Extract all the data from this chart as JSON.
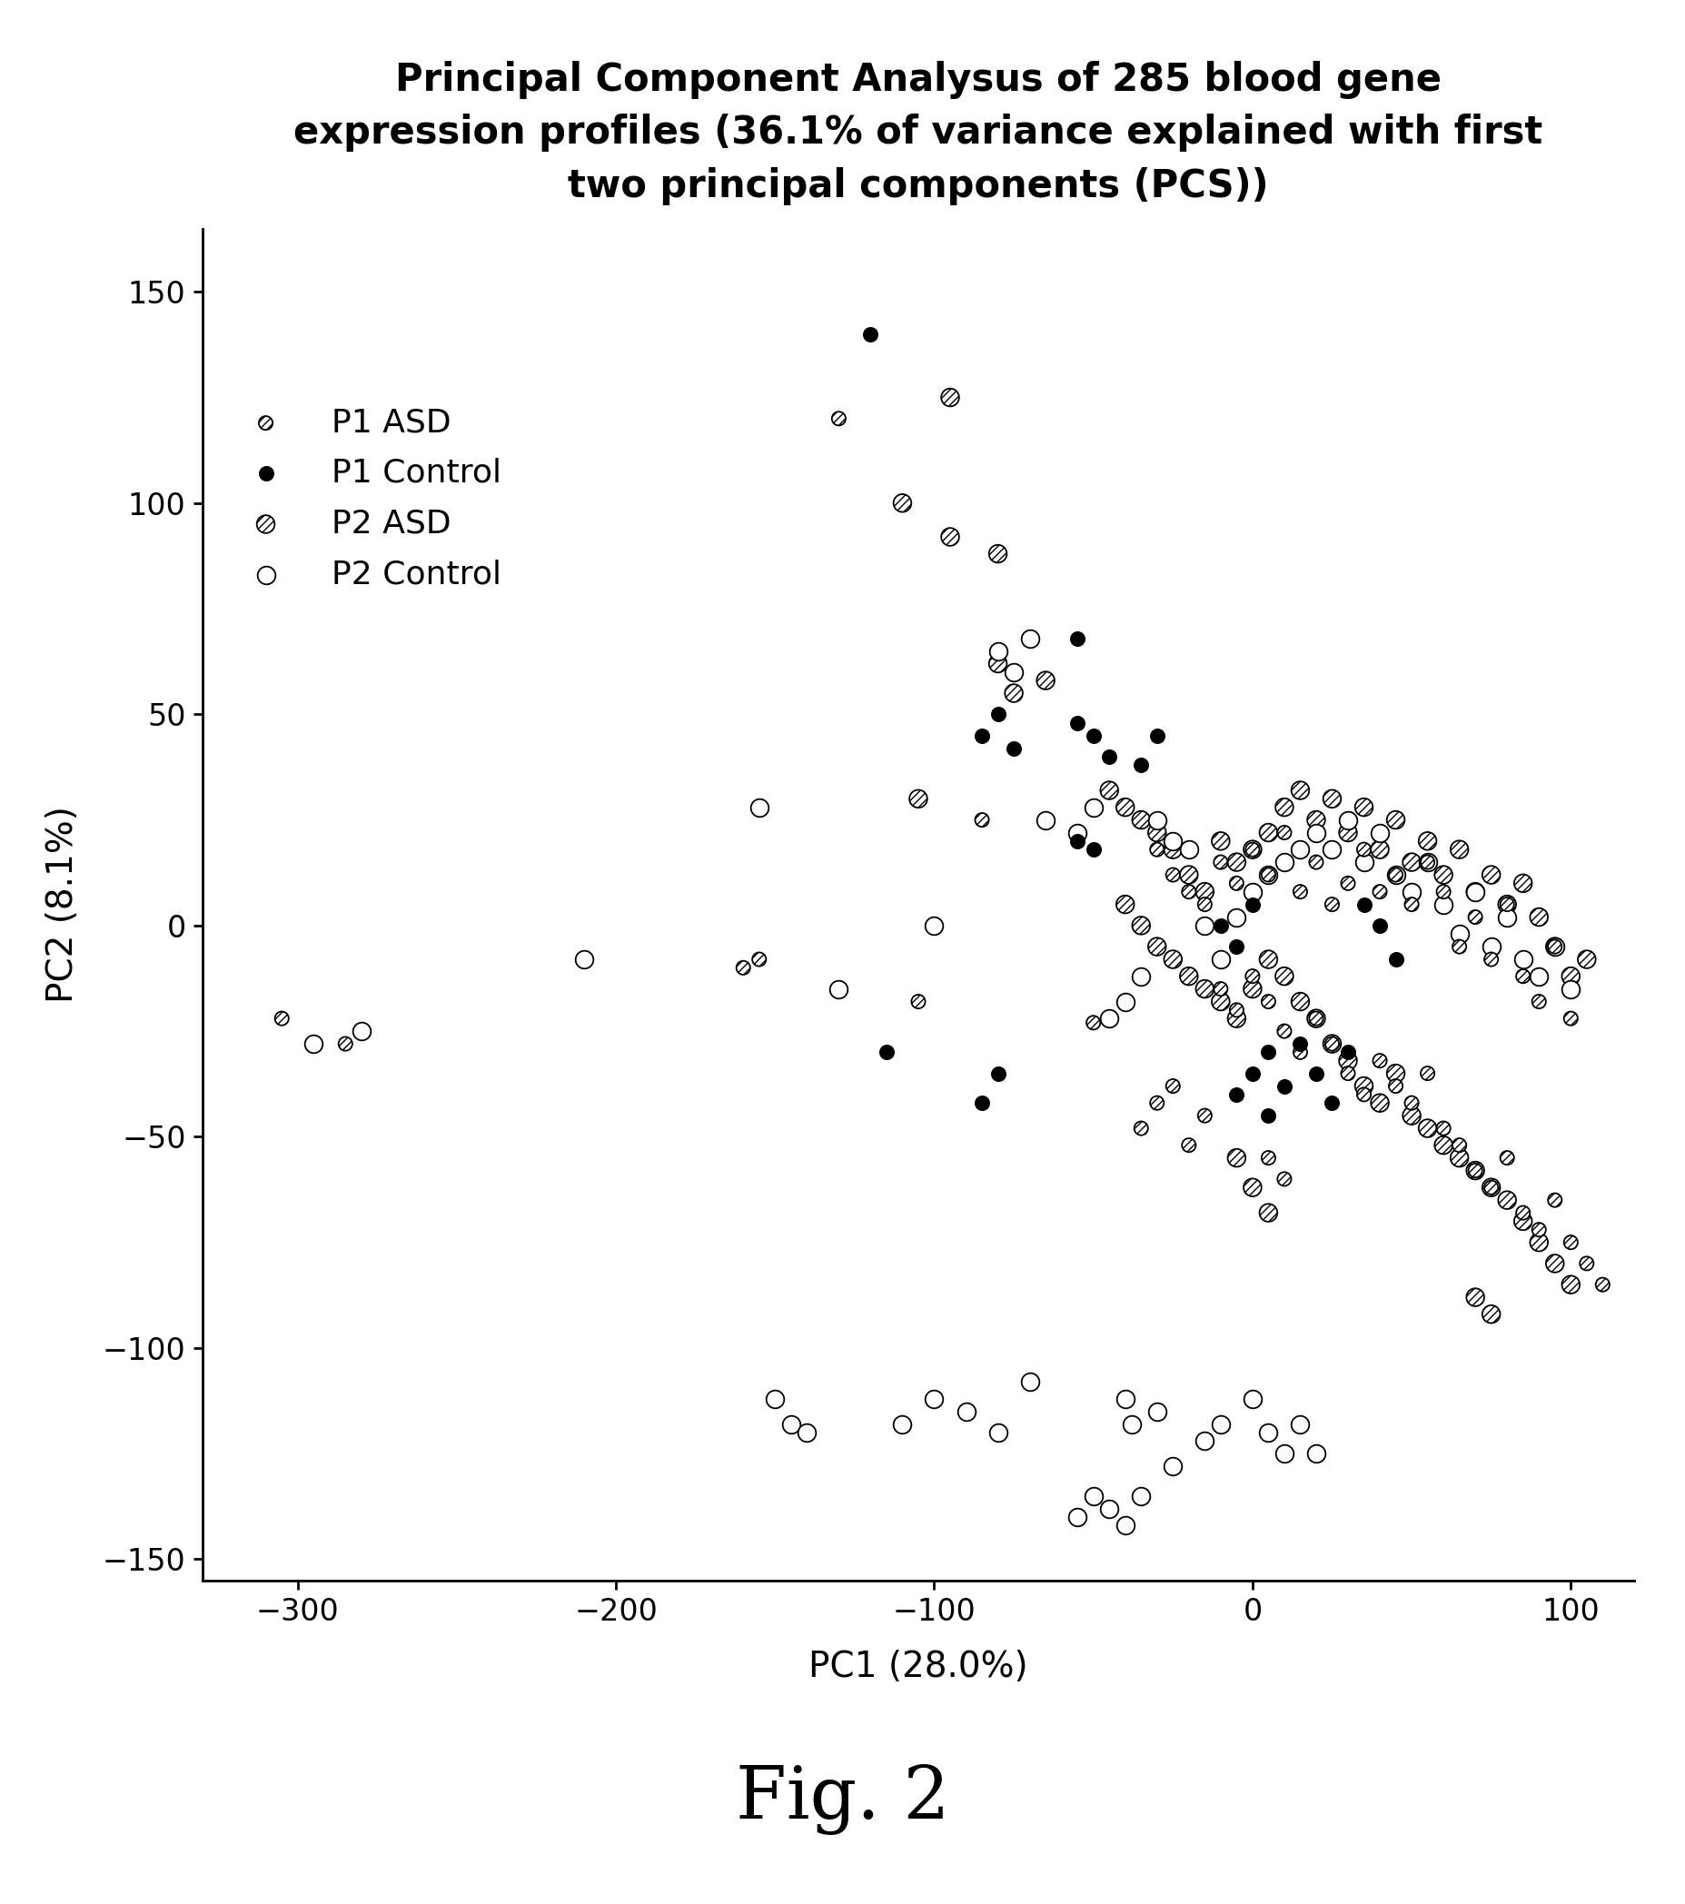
{
  "title": "Principal Component Analysus of 285 blood gene\nexpression profiles (36.1% of variance explained with first\ntwo principal components (PCS))",
  "xlabel": "PC1 (28.0%)",
  "ylabel": "PC2 (8.1%)",
  "fig_label": "Fig. 2",
  "xlim": [
    -330,
    120
  ],
  "ylim": [
    -155,
    165
  ],
  "xticks": [
    -300,
    -200,
    -100,
    0,
    100
  ],
  "yticks": [
    -150,
    -100,
    -50,
    0,
    50,
    100,
    150
  ],
  "background_color": "#ffffff",
  "p1_asd": [
    [
      -305,
      -22
    ],
    [
      -285,
      -28
    ],
    [
      -160,
      -10
    ],
    [
      -155,
      -8
    ],
    [
      -130,
      120
    ],
    [
      -105,
      -18
    ],
    [
      -85,
      25
    ],
    [
      -50,
      -23
    ],
    [
      -30,
      18
    ],
    [
      -25,
      12
    ],
    [
      -20,
      8
    ],
    [
      -15,
      5
    ],
    [
      -10,
      15
    ],
    [
      -5,
      10
    ],
    [
      0,
      18
    ],
    [
      5,
      12
    ],
    [
      10,
      22
    ],
    [
      15,
      8
    ],
    [
      20,
      15
    ],
    [
      25,
      5
    ],
    [
      30,
      10
    ],
    [
      35,
      18
    ],
    [
      40,
      8
    ],
    [
      45,
      12
    ],
    [
      50,
      5
    ],
    [
      55,
      15
    ],
    [
      60,
      8
    ],
    [
      65,
      -5
    ],
    [
      70,
      2
    ],
    [
      75,
      -8
    ],
    [
      80,
      5
    ],
    [
      85,
      -12
    ],
    [
      90,
      -18
    ],
    [
      95,
      -5
    ],
    [
      100,
      -22
    ],
    [
      -10,
      -15
    ],
    [
      -5,
      -20
    ],
    [
      0,
      -12
    ],
    [
      5,
      -18
    ],
    [
      10,
      -25
    ],
    [
      15,
      -30
    ],
    [
      20,
      -22
    ],
    [
      25,
      -28
    ],
    [
      30,
      -35
    ],
    [
      35,
      -40
    ],
    [
      40,
      -32
    ],
    [
      45,
      -38
    ],
    [
      50,
      -42
    ],
    [
      55,
      -35
    ],
    [
      60,
      -48
    ],
    [
      65,
      -52
    ],
    [
      70,
      -58
    ],
    [
      75,
      -62
    ],
    [
      80,
      -55
    ],
    [
      85,
      -68
    ],
    [
      90,
      -72
    ],
    [
      95,
      -65
    ],
    [
      100,
      -75
    ],
    [
      105,
      -80
    ],
    [
      110,
      -85
    ],
    [
      -15,
      -45
    ],
    [
      -20,
      -52
    ],
    [
      -25,
      -38
    ],
    [
      -30,
      -42
    ],
    [
      -35,
      -48
    ],
    [
      5,
      -55
    ],
    [
      10,
      -60
    ]
  ],
  "p1_control": [
    [
      -120,
      140
    ],
    [
      -55,
      68
    ],
    [
      -85,
      45
    ],
    [
      -80,
      50
    ],
    [
      -75,
      42
    ],
    [
      -55,
      48
    ],
    [
      -50,
      45
    ],
    [
      -115,
      -30
    ],
    [
      -85,
      -42
    ],
    [
      -80,
      -35
    ],
    [
      -55,
      20
    ],
    [
      -50,
      18
    ],
    [
      -45,
      40
    ],
    [
      -35,
      38
    ],
    [
      -30,
      45
    ],
    [
      -10,
      0
    ],
    [
      -5,
      -5
    ],
    [
      0,
      5
    ],
    [
      5,
      -30
    ],
    [
      10,
      -38
    ],
    [
      15,
      -28
    ],
    [
      20,
      -35
    ],
    [
      25,
      -42
    ],
    [
      30,
      -30
    ],
    [
      35,
      5
    ],
    [
      40,
      0
    ],
    [
      45,
      -8
    ],
    [
      0,
      -35
    ],
    [
      -5,
      -40
    ],
    [
      5,
      -45
    ]
  ],
  "p2_asd": [
    [
      -95,
      125
    ],
    [
      -110,
      100
    ],
    [
      -95,
      92
    ],
    [
      -80,
      88
    ],
    [
      -80,
      62
    ],
    [
      -75,
      55
    ],
    [
      -65,
      58
    ],
    [
      -105,
      30
    ],
    [
      -45,
      32
    ],
    [
      -40,
      28
    ],
    [
      -35,
      25
    ],
    [
      -30,
      22
    ],
    [
      -25,
      18
    ],
    [
      -20,
      12
    ],
    [
      -15,
      8
    ],
    [
      -10,
      20
    ],
    [
      -5,
      15
    ],
    [
      0,
      18
    ],
    [
      5,
      22
    ],
    [
      10,
      28
    ],
    [
      15,
      32
    ],
    [
      20,
      25
    ],
    [
      25,
      30
    ],
    [
      30,
      22
    ],
    [
      35,
      28
    ],
    [
      40,
      18
    ],
    [
      45,
      25
    ],
    [
      50,
      15
    ],
    [
      55,
      20
    ],
    [
      60,
      12
    ],
    [
      65,
      18
    ],
    [
      70,
      8
    ],
    [
      75,
      12
    ],
    [
      80,
      5
    ],
    [
      85,
      10
    ],
    [
      90,
      2
    ],
    [
      95,
      -5
    ],
    [
      100,
      -12
    ],
    [
      105,
      -8
    ],
    [
      -40,
      5
    ],
    [
      -35,
      0
    ],
    [
      -30,
      -5
    ],
    [
      -25,
      -8
    ],
    [
      -20,
      -12
    ],
    [
      -15,
      -15
    ],
    [
      -10,
      -18
    ],
    [
      -5,
      -22
    ],
    [
      0,
      -15
    ],
    [
      5,
      -8
    ],
    [
      10,
      -12
    ],
    [
      15,
      -18
    ],
    [
      20,
      -22
    ],
    [
      25,
      -28
    ],
    [
      30,
      -32
    ],
    [
      35,
      -38
    ],
    [
      40,
      -42
    ],
    [
      45,
      -35
    ],
    [
      50,
      -45
    ],
    [
      55,
      -48
    ],
    [
      60,
      -52
    ],
    [
      65,
      -55
    ],
    [
      70,
      -58
    ],
    [
      75,
      -62
    ],
    [
      80,
      -65
    ],
    [
      85,
      -70
    ],
    [
      90,
      -75
    ],
    [
      95,
      -80
    ],
    [
      100,
      -85
    ],
    [
      -5,
      -55
    ],
    [
      0,
      -62
    ],
    [
      5,
      -68
    ],
    [
      70,
      -88
    ],
    [
      75,
      -92
    ]
  ],
  "p2_control": [
    [
      -295,
      -28
    ],
    [
      -280,
      -25
    ],
    [
      -210,
      -8
    ],
    [
      -155,
      28
    ],
    [
      -130,
      -15
    ],
    [
      -80,
      65
    ],
    [
      -75,
      60
    ],
    [
      -70,
      68
    ],
    [
      -65,
      25
    ],
    [
      -55,
      22
    ],
    [
      -50,
      28
    ],
    [
      -45,
      -22
    ],
    [
      -40,
      -18
    ],
    [
      -35,
      -12
    ],
    [
      -100,
      0
    ],
    [
      -30,
      25
    ],
    [
      -25,
      20
    ],
    [
      -20,
      18
    ],
    [
      -15,
      0
    ],
    [
      -10,
      -8
    ],
    [
      -5,
      2
    ],
    [
      0,
      8
    ],
    [
      5,
      12
    ],
    [
      10,
      15
    ],
    [
      15,
      18
    ],
    [
      20,
      22
    ],
    [
      25,
      18
    ],
    [
      30,
      25
    ],
    [
      35,
      15
    ],
    [
      40,
      22
    ],
    [
      45,
      12
    ],
    [
      50,
      8
    ],
    [
      55,
      15
    ],
    [
      60,
      5
    ],
    [
      65,
      -2
    ],
    [
      70,
      8
    ],
    [
      75,
      -5
    ],
    [
      80,
      2
    ],
    [
      85,
      -8
    ],
    [
      90,
      -12
    ],
    [
      95,
      -5
    ],
    [
      100,
      -15
    ],
    [
      -150,
      -112
    ],
    [
      -145,
      -118
    ],
    [
      -110,
      -118
    ],
    [
      -100,
      -112
    ],
    [
      -90,
      -115
    ],
    [
      -80,
      -120
    ],
    [
      -70,
      -108
    ],
    [
      -140,
      -120
    ],
    [
      -40,
      -112
    ],
    [
      -38,
      -118
    ],
    [
      -30,
      -115
    ],
    [
      -55,
      -140
    ],
    [
      -50,
      -135
    ],
    [
      -45,
      -138
    ],
    [
      -40,
      -142
    ],
    [
      -35,
      -135
    ],
    [
      -25,
      -128
    ],
    [
      -15,
      -122
    ],
    [
      -10,
      -118
    ],
    [
      0,
      -112
    ],
    [
      5,
      -120
    ],
    [
      10,
      -125
    ],
    [
      15,
      -118
    ],
    [
      20,
      -125
    ]
  ]
}
